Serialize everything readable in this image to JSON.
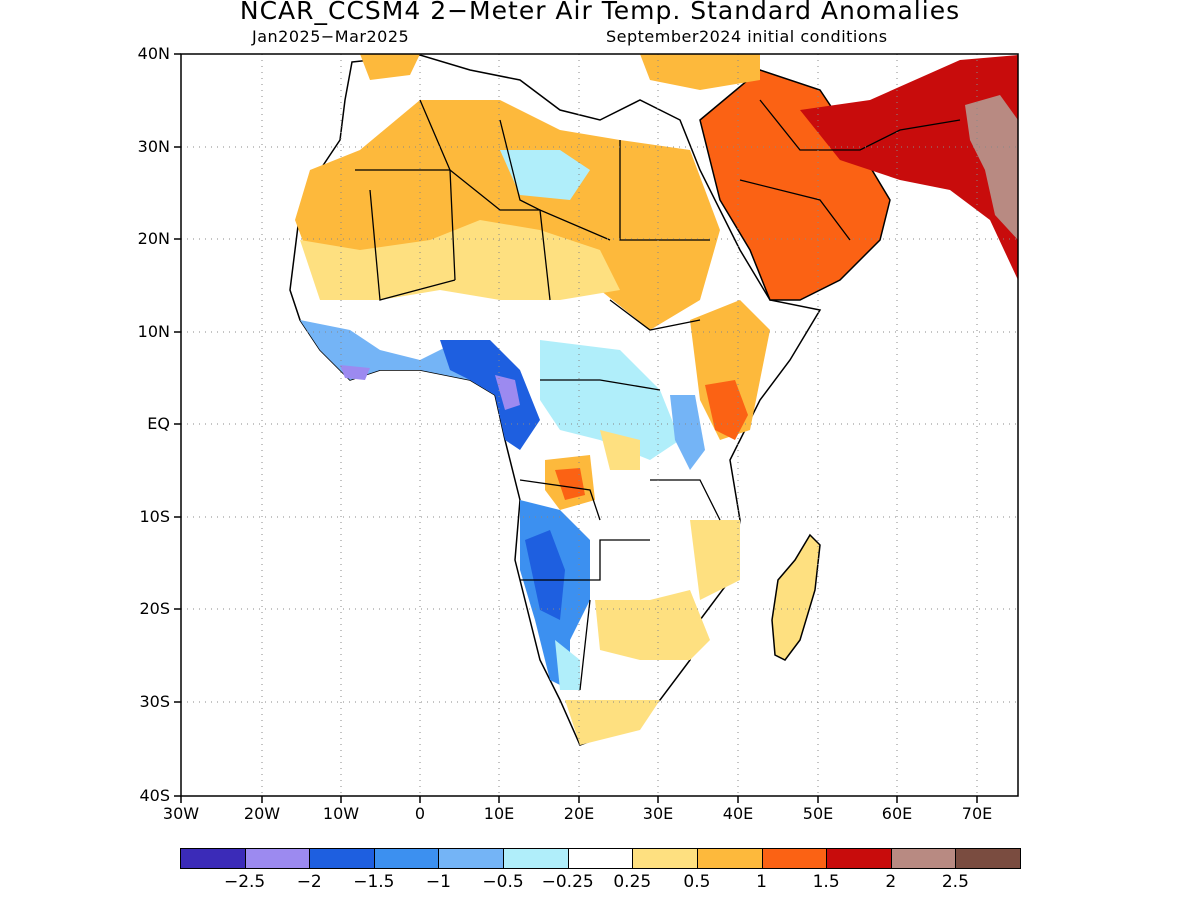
{
  "title": "NCAR_CCSM4 2−Meter Air Temp. Standard Anomalies",
  "subtitle_left": "Jan2025−Mar2025",
  "subtitle_right": "September2024 initial conditions",
  "y_labels": [
    "40N",
    "30N",
    "20N",
    "10N",
    "EQ",
    "10S",
    "20S",
    "30S",
    "40S"
  ],
  "x_labels": [
    "30W",
    "20W",
    "10W",
    "0",
    "10E",
    "20E",
    "30E",
    "40E",
    "50E",
    "60E",
    "70E"
  ],
  "colorbar": {
    "colors": [
      "#3b2bb8",
      "#9c8af0",
      "#1e5fe0",
      "#3c90f0",
      "#74b4f6",
      "#b0eefa",
      "#ffffff",
      "#fee080",
      "#fdb93c",
      "#fb6214",
      "#c80c0c",
      "#b88a82",
      "#7a4c40"
    ],
    "labels": [
      "−2.5",
      "−2",
      "−1.5",
      "−1",
      "−0.5",
      "−0.25",
      "0.25",
      "0.5",
      "1",
      "1.5",
      "2",
      "2.5"
    ]
  }
}
